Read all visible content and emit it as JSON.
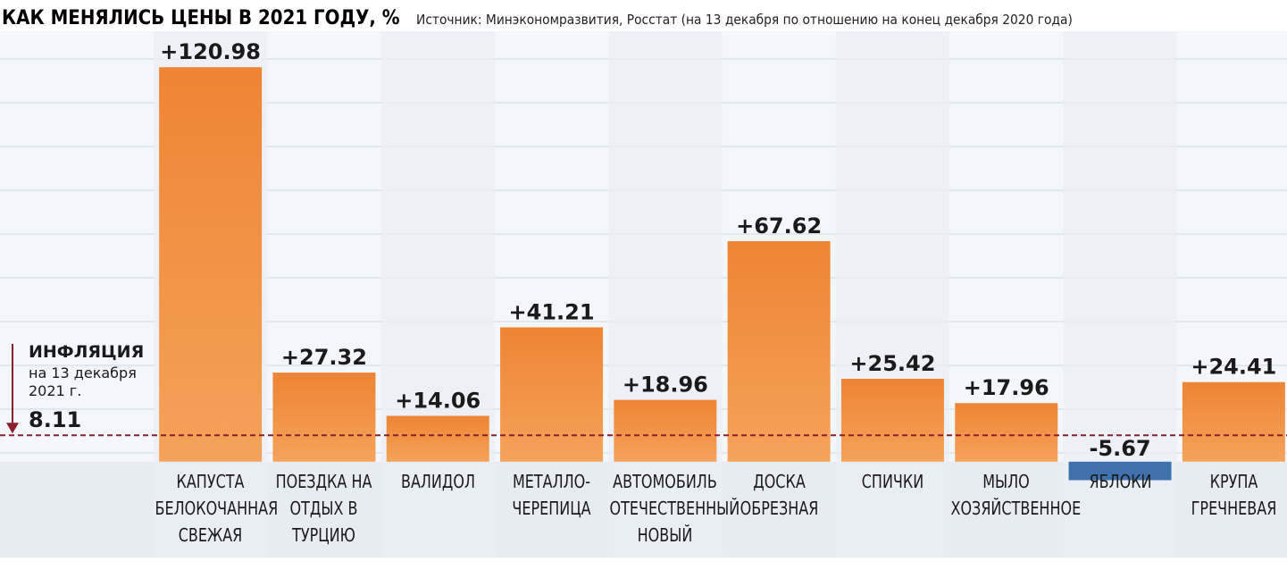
{
  "chart_data": {
    "type": "bar",
    "title": "КАК МЕНЯЛИСЬ ЦЕНЫ В 2021 ГОДУ, %",
    "subtitle": "Источник: Минэкономразвития, Росстат (на 13 декабря по отношению на конец декабря 2020 года)",
    "categories": [
      "КАПУСТА БЕЛОКОЧАННАЯ СВЕЖАЯ",
      "ПОЕЗДКА НА ОТДЫХ В ТУРЦИЮ",
      "ВАЛИДОЛ",
      "МЕТАЛЛО-ЧЕРЕПИЦА",
      "АВТОМОБИЛЬ ОТЕЧЕСТВЕННЫЙ НОВЫЙ",
      "ДОСКА ОБРЕЗНАЯ",
      "СПИЧКИ",
      "МЫЛО ХОЗЯЙСТВЕННОЕ",
      "ЯБЛОКИ",
      "КРУПА ГРЕЧНЕВАЯ"
    ],
    "values": [
      120.98,
      27.32,
      14.06,
      41.21,
      18.96,
      67.62,
      25.42,
      17.96,
      -5.67,
      24.41
    ],
    "value_labels": [
      "+120.98",
      "+27.32",
      "+14.06",
      "+41.21",
      "+18.96",
      "+67.62",
      "+25.42",
      "+17.96",
      "-5.67",
      "+24.41"
    ],
    "color": "#ee8434",
    "negative_color": "#3f72ad",
    "ylim": [
      -28,
      132
    ],
    "reference": {
      "label": "ИНФЛЯЦИЯ",
      "note": "на 13 декабря 2021 г.",
      "value": 8.11,
      "color": "#8a1f2d"
    }
  }
}
